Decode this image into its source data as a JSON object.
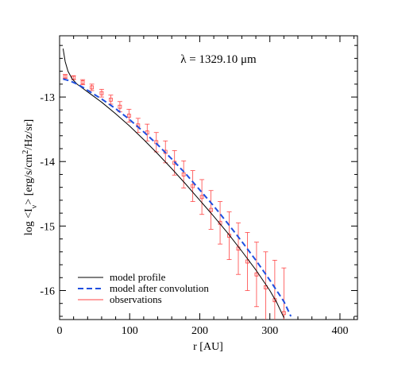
{
  "chart_data": {
    "type": "line",
    "annotation": "λ = 1329.10 μm",
    "xlabel": "r [AU]",
    "ylabel_parts": {
      "pre": "log <I",
      "sub": "ν",
      "mid": "> [erg/s/cm",
      "sup": "2",
      "post": "/Hz/sr]"
    },
    "xlim": [
      0,
      425
    ],
    "ylim": [
      -16.45,
      -12.05
    ],
    "xticks": [
      0,
      100,
      200,
      300,
      400
    ],
    "xtick_labels": [
      "0",
      "100",
      "200",
      "300",
      "400"
    ],
    "yticks": [
      -13,
      -14,
      -15,
      -16
    ],
    "ytick_labels": [
      "-13",
      "-14",
      "-15",
      "-16"
    ],
    "legend_position": "bottom-left",
    "colors": {
      "model_profile": "#000000",
      "model_after_convolution": "#1f4fe0",
      "observations": "#ff4444"
    },
    "series": [
      {
        "name": "model profile",
        "style": "solid",
        "x": [
          5,
          8,
          12,
          18,
          25,
          35,
          45,
          60,
          80,
          100,
          120,
          140,
          160,
          180,
          200,
          220,
          240,
          260,
          280,
          300,
          310,
          320
        ],
        "y": [
          -12.25,
          -12.45,
          -12.6,
          -12.72,
          -12.8,
          -12.88,
          -12.96,
          -13.08,
          -13.26,
          -13.45,
          -13.66,
          -13.88,
          -14.11,
          -14.35,
          -14.6,
          -14.85,
          -15.11,
          -15.39,
          -15.68,
          -16.0,
          -16.19,
          -16.42
        ]
      },
      {
        "name": "model after convolution",
        "style": "dashed",
        "x": [
          5,
          15,
          25,
          35,
          45,
          60,
          80,
          100,
          120,
          140,
          160,
          180,
          200,
          220,
          240,
          260,
          280,
          300,
          320,
          330
        ],
        "y": [
          -12.72,
          -12.75,
          -12.8,
          -12.86,
          -12.93,
          -13.03,
          -13.18,
          -13.35,
          -13.54,
          -13.74,
          -13.96,
          -14.19,
          -14.44,
          -14.69,
          -14.96,
          -15.24,
          -15.53,
          -15.84,
          -16.17,
          -16.4
        ]
      },
      {
        "name": "observations",
        "style": "points",
        "x": [
          8,
          20,
          33,
          46,
          60,
          73,
          86,
          99,
          112,
          125,
          138,
          151,
          164,
          177,
          190,
          203,
          216,
          229,
          242,
          255,
          268,
          281,
          294,
          307,
          320
        ],
        "y": [
          -12.68,
          -12.7,
          -12.77,
          -12.85,
          -12.94,
          -13.04,
          -13.15,
          -13.29,
          -13.44,
          -13.55,
          -13.7,
          -13.85,
          -14.02,
          -14.2,
          -14.38,
          -14.55,
          -14.75,
          -14.95,
          -15.15,
          -15.35,
          -15.55,
          -15.75,
          -15.95,
          -16.15,
          -16.35
        ],
        "err_lo": [
          0.03,
          0.03,
          0.04,
          0.05,
          0.06,
          0.07,
          0.08,
          0.1,
          0.11,
          0.13,
          0.15,
          0.17,
          0.19,
          0.21,
          0.24,
          0.27,
          0.3,
          0.33,
          0.37,
          0.4,
          0.45,
          0.5,
          0.55,
          0.62,
          0.7
        ],
        "err_hi": [
          0.03,
          0.03,
          0.04,
          0.05,
          0.06,
          0.07,
          0.08,
          0.1,
          0.11,
          0.13,
          0.15,
          0.17,
          0.19,
          0.21,
          0.24,
          0.27,
          0.3,
          0.33,
          0.37,
          0.4,
          0.45,
          0.5,
          0.55,
          0.62,
          0.7
        ]
      }
    ]
  }
}
